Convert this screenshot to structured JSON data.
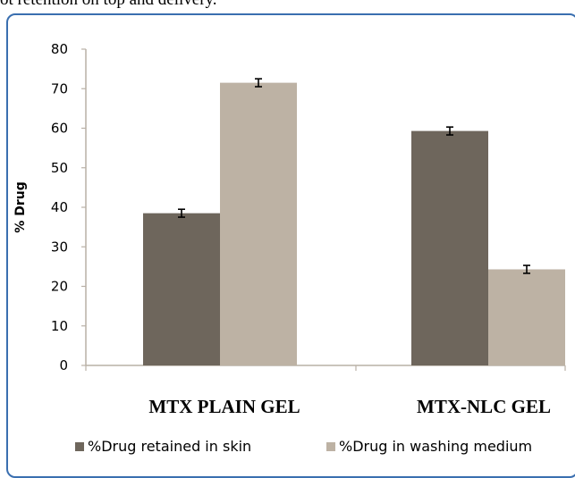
{
  "caption_fragment": "ot retention on top and delivery.",
  "chart_data": {
    "type": "bar",
    "ylabel": "% Drug",
    "ylim": [
      0,
      80
    ],
    "yticks": [
      0,
      10,
      20,
      30,
      40,
      50,
      60,
      70,
      80
    ],
    "categories": [
      "MTX PLAIN GEL",
      "MTX-NLC GEL"
    ],
    "series": [
      {
        "name": "%Drug retained in skin",
        "color": "#6e665c",
        "values": [
          38.5,
          59.3
        ],
        "errors": [
          1.0,
          1.0
        ]
      },
      {
        "name": "%Drug in washing medium",
        "color": "#bdb2a4",
        "values": [
          71.5,
          24.3
        ],
        "errors": [
          1.0,
          1.0
        ]
      }
    ],
    "legend_position": "bottom",
    "grid": false
  }
}
